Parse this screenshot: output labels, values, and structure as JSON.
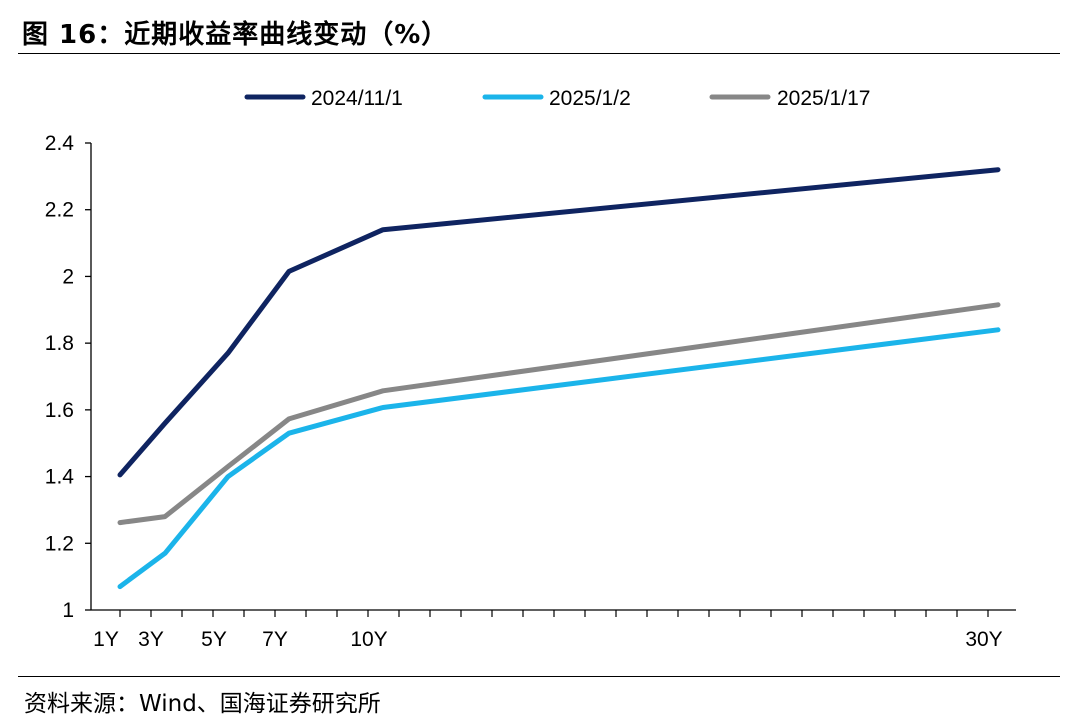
{
  "figure": {
    "title": "图 16：近期收益率曲线变动（%）",
    "source": "资料来源：Wind、国海证券研究所"
  },
  "chart_data": {
    "type": "line",
    "title": "",
    "xlabel": "",
    "ylabel": "",
    "x": [
      1,
      3,
      5,
      7,
      10,
      30
    ],
    "x_tick_labels": [
      "1Y",
      "3Y",
      "5Y",
      "7Y",
      "10Y",
      "30Y"
    ],
    "ylim": [
      1,
      2.4
    ],
    "y_ticks": [
      1,
      1.2,
      1.4,
      1.6,
      1.8,
      2,
      2.2,
      2.4
    ],
    "y_tick_labels": [
      "1",
      "1.2",
      "1.4",
      "1.6",
      "1.8",
      "2",
      "2.2",
      "2.4"
    ],
    "grid": false,
    "legend_position": "top",
    "series": [
      {
        "name": "2024/11/1",
        "color": "#0f2461",
        "values": [
          1.405,
          1.56,
          1.77,
          2.015,
          2.14,
          2.32
        ]
      },
      {
        "name": "2025/1/2",
        "color": "#1bb4ea",
        "values": [
          1.07,
          1.17,
          1.4,
          1.53,
          1.607,
          1.84
        ]
      },
      {
        "name": "2025/1/17",
        "color": "#878787",
        "values": [
          1.262,
          1.28,
          1.43,
          1.573,
          1.657,
          1.915
        ]
      }
    ]
  }
}
